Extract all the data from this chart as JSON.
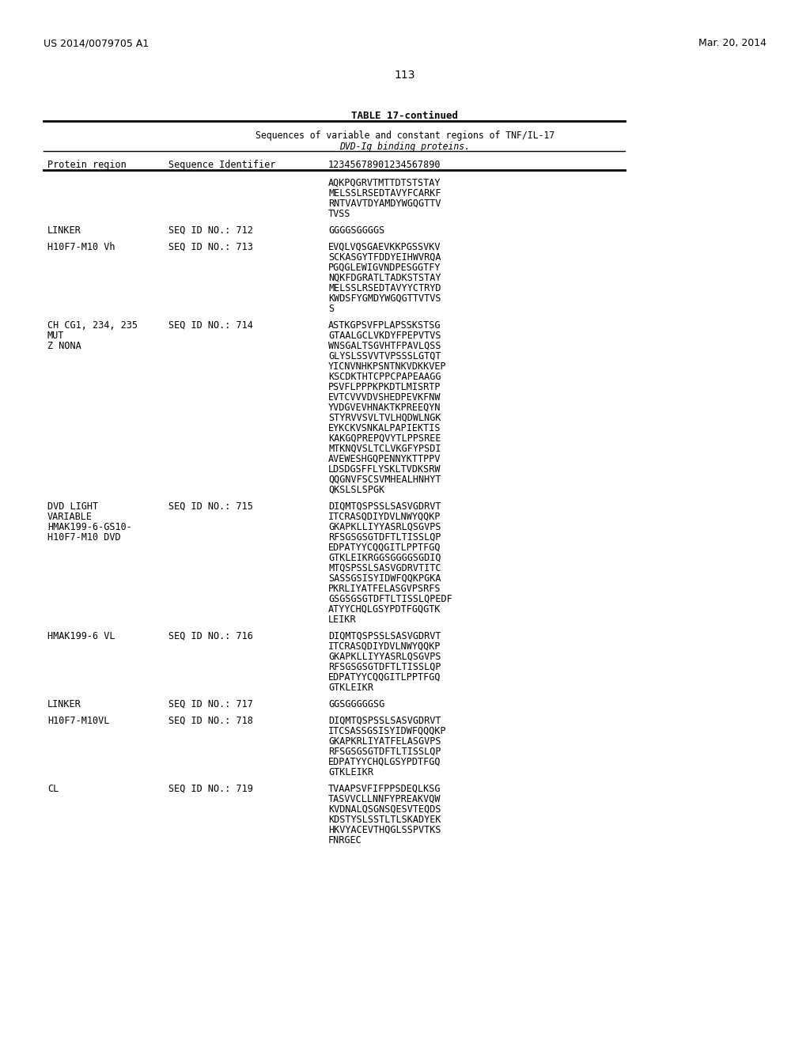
{
  "header_left": "US 2014/0079705 A1",
  "header_right": "Mar. 20, 2014",
  "page_number": "113",
  "table_title": "TABLE 17-continued",
  "table_subtitle1": "Sequences of variable and constant regions of TNF/IL-17",
  "table_subtitle2": "DVD-Ig binding proteins.",
  "col1_header": "Protein region",
  "col2_header": "Sequence Identifier",
  "col3_header": "12345678901234567890",
  "rows": [
    {
      "col1": "",
      "col2": "",
      "col3": [
        "AQKPQGRVTMTTDTSTSTAY",
        "MELSSLRSEDTAVYFCARKF",
        "RNTVAVTDYAMDYWGQGTTV",
        "TVSS"
      ]
    },
    {
      "col1": "LINKER",
      "col2": "SEQ ID NO.: 712",
      "col3": [
        "GGGGSGGGGS"
      ]
    },
    {
      "col1": "H10F7-M10 Vh",
      "col2": "SEQ ID NO.: 713",
      "col3": [
        "EVQLVQSGAEVKKPGSSVKV",
        "SCKASGYTFDDYEIHWVRQA",
        "PGQGLEWIGVNDPESGGTFY",
        "NQKFDGRATLTADKSTSTAY",
        "MELSSLRSEDTAVYYCTRYD",
        "KWDSFYGMDYWGQGTTVTVS",
        "S"
      ]
    },
    {
      "col1": "CH CG1, 234, 235\nMUT\nZ NONA",
      "col2": "SEQ ID NO.: 714",
      "col3": [
        "ASTKGPSVFPLAPSSKSTSG",
        "GTAALGCLVKDYFPEPVTVS",
        "WNSGALTSGVHTFPAVLQSS",
        "GLYSLSSVVTVPSSSLGTQT",
        "YICNVNHKPSNTNKVDKKVEP",
        "KSCDKTHTCPPCPAPEAAGG",
        "PSVFLPPPKPKDTLMISRTP",
        "EVTCVVVDVSHEDPEVKFNW",
        "YVDGVEVHNAKTKPREEQYN",
        "STYRVVSVLTVLHQDWLNGK",
        "EYKCKVSNKALPAPIEKTIS",
        "KAKGQPREPQVYTLPPSREE",
        "MTKNQVSLTCLVKGFYPSDI",
        "AVEWESHGQPENNYKTTPPV",
        "LDSDGSFFLYSKLTVDKSRW",
        "QQGNVFSCSVMHEALHNHYT",
        "QKSLSLSPGK"
      ]
    },
    {
      "col1": "DVD LIGHT\nVARIABLE\nHMAK199-6-GS10-\nH10F7-M10 DVD",
      "col2": "SEQ ID NO.: 715",
      "col3": [
        "DIQMTQSPSSLSASVGDRVT",
        "ITCRASQDIYDVLNWYQQKP",
        "GKAPKLLIYYASRLQSGVPS",
        "RFSGSGSGTDFTLTISSLQP",
        "EDPATYYCQQGITLPPTFGQ",
        "GTKLEIKRGGSGGGGSGDIQ",
        "MTQSPSSLSASVGDRVTITC",
        "SASSGSISYIDWFQQKPGKA",
        "PKRLIYATFELASGVPSRFS",
        "GSGSGSGTDFTLTISSLQPEDF",
        "ATYYCHQLGSYPDTFGQGTK",
        "LEIKR"
      ]
    },
    {
      "col1": "HMAK199-6 VL",
      "col2": "SEQ ID NO.: 716",
      "col3": [
        "DIQMTQSPSSLSASVGDRVT",
        "ITCRASQDIYDVLNWYQQKP",
        "GKAPKLLIYYASRLQSGVPS",
        "RFSGSGSGTDFTLTISSLQP",
        "EDPATYYCQQGITLPPTFGQ",
        "GTKLEIKR"
      ]
    },
    {
      "col1": "LINKER",
      "col2": "SEQ ID NO.: 717",
      "col3": [
        "GGSGGGGGSG"
      ]
    },
    {
      "col1": "H10F7-M10VL",
      "col2": "SEQ ID NO.: 718",
      "col3": [
        "DIQMTQSPSSLSASVGDRVT",
        "ITCSASSGSISYIDWFQQQKP",
        "GKAPKRLIYATFELASGVPS",
        "RFSGSGSGTDFTLTISSLQP",
        "EDPATYYCHQLGSYPDTFGQ",
        "GTKLEIKR"
      ]
    },
    {
      "col1": "CL",
      "col2": "SEQ ID NO.: 719",
      "col3": [
        "TVAAPSVFIFPPSDEQLKSG",
        "TASVVCLLNNFYPREAKVQW",
        "KVDNALQSGNSQESVTEQDS",
        "KDSTYSLSSTLTLSKADYEK",
        "HKVYACEVTHQGLSSPVTKS",
        "FNRGEC"
      ]
    }
  ],
  "bg_color": "#ffffff",
  "text_color": "#000000"
}
